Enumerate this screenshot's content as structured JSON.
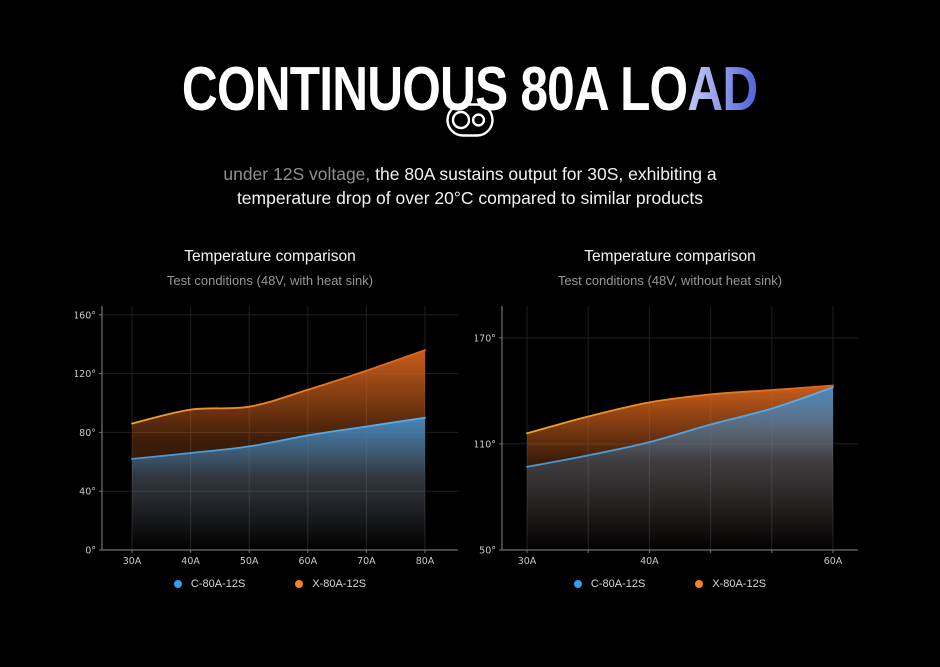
{
  "page": {
    "title_main": "CONTINUOUS 80A LO",
    "title_accent": "AD",
    "accent_gradient": [
      "#c6cef5",
      "#4d5cd8"
    ],
    "icon": "stadium-two-circles-icon",
    "subtitle_gray": "under 12S voltage,",
    "subtitle_line1_rest": " the 80A sustains output for 30S, exhibiting a",
    "subtitle_line2": "temperature drop of over 20°C compared to similar products"
  },
  "chart_data": [
    {
      "type": "area",
      "title": "Temperature comparison",
      "subtitle": "Test conditions (48V, with heat sink)",
      "categories": [
        "30A",
        "40A",
        "50A",
        "60A",
        "70A",
        "80A"
      ],
      "x_tick_labels": [
        "30A",
        "40A",
        "50A",
        "60A",
        "70A",
        "80A"
      ],
      "y_tick_values": [
        0,
        40,
        80,
        120,
        160
      ],
      "y_tick_labels": [
        "0°",
        "40°",
        "80°",
        "120°",
        "160°"
      ],
      "ylim": [
        0,
        166
      ],
      "x_pad": [
        30,
        33
      ],
      "grid": true,
      "legend_position": "bottom",
      "series": [
        {
          "name": "C-80A-12S",
          "values": [
            62,
            66,
            70.5,
            78,
            84,
            90
          ],
          "legend_color": "#2f9ff0",
          "line_gradient": [
            "#4796cf",
            "#58b0f0"
          ],
          "fill_color": "#4189c2"
        },
        {
          "name": "X-80A-12S",
          "values": [
            86,
            95.5,
            97.5,
            109,
            122,
            136
          ],
          "legend_color": "#f5831e",
          "line_gradient": [
            "#f2a229",
            "#e55f1d"
          ],
          "fill_color": "#d2621c"
        }
      ]
    },
    {
      "type": "area",
      "title": "Temperature comparison",
      "subtitle": "Test conditions (48V, without heat sink)",
      "categories": [
        "30A",
        "",
        "40A",
        "",
        "",
        "60A"
      ],
      "x_tick_labels": [
        "30A",
        "",
        "40A",
        "",
        "",
        "60A"
      ],
      "y_tick_values": [
        50,
        110,
        170
      ],
      "y_tick_labels": [
        "50°",
        "110°",
        "170°"
      ],
      "ylim": [
        50,
        188
      ],
      "x_pad": [
        25,
        25
      ],
      "grid": true,
      "legend_position": "bottom",
      "series": [
        {
          "name": "C-80A-12S",
          "values": [
            97,
            103.5,
            111,
            121,
            130,
            142
          ],
          "legend_color": "#2f9ff0",
          "line_gradient": [
            "#4796cf",
            "#58b0f0"
          ],
          "fill_color": "#4189c2"
        },
        {
          "name": "X-80A-12S",
          "values": [
            116,
            125.5,
            133.5,
            138,
            140.5,
            143
          ],
          "legend_color": "#f5831e",
          "line_gradient": [
            "#f2a229",
            "#e55f1d"
          ],
          "fill_color": "#d2621c"
        }
      ]
    }
  ]
}
